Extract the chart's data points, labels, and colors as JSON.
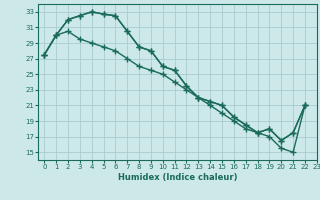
{
  "xlabel": "Humidex (Indice chaleur)",
  "ylabel": "",
  "background_color": "#cce8e8",
  "grid_color": "#aacccc",
  "line_color": "#1a6b5a",
  "xlim": [
    -0.5,
    23
  ],
  "ylim": [
    14,
    34
  ],
  "yticks": [
    15,
    17,
    19,
    21,
    23,
    25,
    27,
    29,
    31,
    33
  ],
  "xticks": [
    0,
    1,
    2,
    3,
    4,
    5,
    6,
    7,
    8,
    9,
    10,
    11,
    12,
    13,
    14,
    15,
    16,
    17,
    18,
    19,
    20,
    21,
    22,
    23
  ],
  "line1_x": [
    0,
    1,
    2,
    3,
    4,
    5,
    6,
    7,
    8,
    9,
    10,
    11,
    12,
    13,
    14,
    15,
    16,
    17,
    18,
    19,
    20,
    21,
    22
  ],
  "line1_y": [
    27.5,
    30.0,
    32.0,
    32.5,
    33.0,
    32.7,
    32.5,
    30.5,
    28.5,
    28.0,
    26.0,
    25.5,
    23.5,
    22.0,
    21.5,
    21.0,
    19.5,
    18.5,
    17.5,
    17.0,
    15.5,
    15.0,
    21.0
  ],
  "line2_x": [
    0,
    1,
    2,
    3,
    4,
    5,
    6,
    7,
    8,
    9,
    10,
    11,
    12,
    13,
    14,
    15,
    16,
    17,
    18,
    19,
    20,
    21,
    22
  ],
  "line2_y": [
    27.5,
    30.0,
    32.0,
    32.5,
    33.0,
    32.7,
    32.5,
    30.5,
    28.5,
    28.0,
    26.0,
    25.5,
    23.5,
    22.0,
    21.5,
    21.0,
    19.5,
    18.5,
    17.5,
    18.0,
    16.5,
    17.5,
    21.0
  ],
  "line3_x": [
    0,
    1,
    2,
    3,
    4,
    5,
    6,
    7,
    8,
    9,
    10,
    11,
    12,
    13,
    14,
    15,
    16,
    17,
    18,
    19,
    20,
    21,
    22
  ],
  "line3_y": [
    27.5,
    30.0,
    30.5,
    29.5,
    29.0,
    28.5,
    28.0,
    27.0,
    26.0,
    25.5,
    25.0,
    24.0,
    23.0,
    22.0,
    21.0,
    20.0,
    19.0,
    18.0,
    17.5,
    18.0,
    16.5,
    17.5,
    21.0
  ]
}
